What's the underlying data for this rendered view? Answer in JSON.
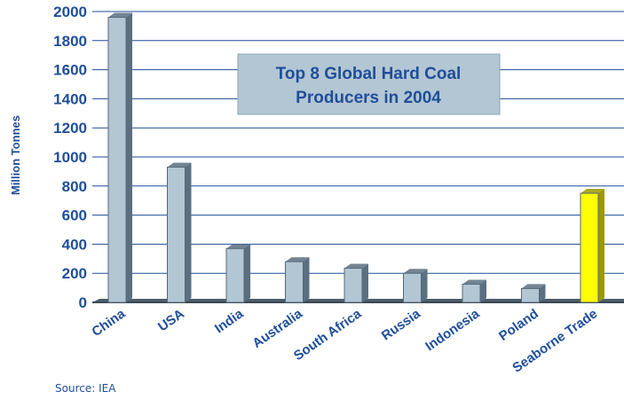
{
  "chart_data": {
    "type": "bar",
    "title": "Top 8 Global Hard Coal Producers in 2004",
    "title_lines": [
      "Top 8 Global Hard Coal",
      "Producers in 2004"
    ],
    "ylabel": "Million Tonnes",
    "xlabel": "",
    "ylim": [
      0,
      2000
    ],
    "yticks": [
      "0",
      "200",
      "400",
      "600",
      "800",
      "1000",
      "1200",
      "1400",
      "1600",
      "1800",
      "2000"
    ],
    "categories": [
      "China",
      "USA",
      "India",
      "Australia",
      "South Africa",
      "Russia",
      "Indonesia",
      "Poland",
      "Seaborne Trade"
    ],
    "values": [
      1960,
      930,
      370,
      280,
      235,
      200,
      125,
      95,
      750
    ],
    "grid": true,
    "legend": "none",
    "colors": {
      "bar": "#b3c6d3",
      "bar_side": "#5a6f80",
      "highlight_bar": "#ffff00",
      "highlight_side": "#9a9a00",
      "grid": "#1f4e9a",
      "text": "#1f4e9a",
      "title_box": "#b3c6d3"
    },
    "highlight_category": "Seaborne Trade"
  },
  "source": "Source: IEA"
}
